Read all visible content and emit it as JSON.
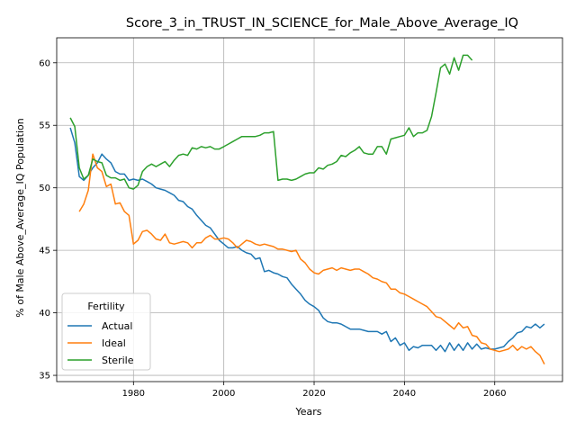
{
  "chart_data": {
    "type": "line",
    "title": "Score_3_in_TRUST_IN_SCIENCE_for_Male_Above_Average_IQ",
    "xlabel": "Years",
    "ylabel": "% of Male Above_Average_IQ Population",
    "xlim": [
      1963,
      2075
    ],
    "ylim": [
      34.5,
      62
    ],
    "xticks": [
      1980,
      2000,
      2020,
      2040,
      2060
    ],
    "yticks": [
      35,
      40,
      45,
      50,
      55,
      60
    ],
    "grid": true,
    "legend": {
      "title": "Fertility",
      "placement": "lower-left"
    },
    "series": [
      {
        "name": "Actual",
        "color": "#1f77b4",
        "points": [
          [
            1966,
            54.8
          ],
          [
            1967,
            53.6
          ],
          [
            1968,
            50.9
          ],
          [
            1969,
            50.6
          ],
          [
            1970,
            51.0
          ],
          [
            1971,
            51.6
          ],
          [
            1972,
            52.0
          ],
          [
            1973,
            52.7
          ],
          [
            1974,
            52.3
          ],
          [
            1975,
            52.0
          ],
          [
            1976,
            51.3
          ],
          [
            1977,
            51.1
          ],
          [
            1978,
            51.1
          ],
          [
            1979,
            50.6
          ],
          [
            1980,
            50.7
          ],
          [
            1981,
            50.6
          ],
          [
            1982,
            50.7
          ],
          [
            1983,
            50.5
          ],
          [
            1984,
            50.3
          ],
          [
            1985,
            50.0
          ],
          [
            1986,
            49.9
          ],
          [
            1987,
            49.8
          ],
          [
            1988,
            49.6
          ],
          [
            1989,
            49.4
          ],
          [
            1990,
            49.0
          ],
          [
            1991,
            48.9
          ],
          [
            1992,
            48.5
          ],
          [
            1993,
            48.3
          ],
          [
            1994,
            47.8
          ],
          [
            1995,
            47.4
          ],
          [
            1996,
            47.0
          ],
          [
            1997,
            46.8
          ],
          [
            1998,
            46.3
          ],
          [
            1999,
            45.8
          ],
          [
            2000,
            45.5
          ],
          [
            2001,
            45.2
          ],
          [
            2002,
            45.2
          ],
          [
            2003,
            45.3
          ],
          [
            2004,
            45.0
          ],
          [
            2005,
            44.8
          ],
          [
            2006,
            44.7
          ],
          [
            2007,
            44.3
          ],
          [
            2008,
            44.4
          ],
          [
            2009,
            43.3
          ],
          [
            2010,
            43.4
          ],
          [
            2011,
            43.2
          ],
          [
            2012,
            43.1
          ],
          [
            2013,
            42.9
          ],
          [
            2014,
            42.8
          ],
          [
            2015,
            42.3
          ],
          [
            2016,
            41.9
          ],
          [
            2017,
            41.5
          ],
          [
            2018,
            41.0
          ],
          [
            2019,
            40.7
          ],
          [
            2020,
            40.5
          ],
          [
            2021,
            40.2
          ],
          [
            2022,
            39.6
          ],
          [
            2023,
            39.3
          ],
          [
            2024,
            39.2
          ],
          [
            2025,
            39.2
          ],
          [
            2026,
            39.1
          ],
          [
            2027,
            38.9
          ],
          [
            2028,
            38.7
          ],
          [
            2029,
            38.7
          ],
          [
            2030,
            38.7
          ],
          [
            2031,
            38.6
          ],
          [
            2032,
            38.5
          ],
          [
            2033,
            38.5
          ],
          [
            2034,
            38.5
          ],
          [
            2035,
            38.3
          ],
          [
            2036,
            38.5
          ],
          [
            2037,
            37.7
          ],
          [
            2038,
            38.0
          ],
          [
            2039,
            37.4
          ],
          [
            2040,
            37.6
          ],
          [
            2041,
            37.0
          ],
          [
            2042,
            37.3
          ],
          [
            2043,
            37.2
          ],
          [
            2044,
            37.4
          ],
          [
            2045,
            37.4
          ],
          [
            2046,
            37.4
          ],
          [
            2047,
            37.0
          ],
          [
            2048,
            37.4
          ],
          [
            2049,
            36.9
          ],
          [
            2050,
            37.6
          ],
          [
            2051,
            37.0
          ],
          [
            2052,
            37.5
          ],
          [
            2053,
            37.0
          ],
          [
            2054,
            37.6
          ],
          [
            2055,
            37.1
          ],
          [
            2056,
            37.5
          ],
          [
            2057,
            37.1
          ],
          [
            2058,
            37.2
          ],
          [
            2059,
            37.1
          ],
          [
            2060,
            37.1
          ],
          [
            2061,
            37.2
          ],
          [
            2062,
            37.3
          ],
          [
            2063,
            37.7
          ],
          [
            2064,
            38.0
          ],
          [
            2065,
            38.4
          ],
          [
            2066,
            38.5
          ],
          [
            2067,
            38.9
          ],
          [
            2068,
            38.8
          ],
          [
            2069,
            39.1
          ],
          [
            2070,
            38.8
          ],
          [
            2071,
            39.1
          ]
        ]
      },
      {
        "name": "Ideal",
        "color": "#ff7f0e",
        "points": [
          [
            1968,
            48.1
          ],
          [
            1969,
            48.7
          ],
          [
            1970,
            49.8
          ],
          [
            1971,
            52.7
          ],
          [
            1972,
            51.6
          ],
          [
            1973,
            51.3
          ],
          [
            1974,
            50.1
          ],
          [
            1975,
            50.3
          ],
          [
            1976,
            48.7
          ],
          [
            1977,
            48.8
          ],
          [
            1978,
            48.1
          ],
          [
            1979,
            47.8
          ],
          [
            1980,
            45.5
          ],
          [
            1981,
            45.8
          ],
          [
            1982,
            46.5
          ],
          [
            1983,
            46.6
          ],
          [
            1984,
            46.3
          ],
          [
            1985,
            45.9
          ],
          [
            1986,
            45.8
          ],
          [
            1987,
            46.3
          ],
          [
            1988,
            45.6
          ],
          [
            1989,
            45.5
          ],
          [
            1990,
            45.6
          ],
          [
            1991,
            45.7
          ],
          [
            1992,
            45.6
          ],
          [
            1993,
            45.2
          ],
          [
            1994,
            45.6
          ],
          [
            1995,
            45.6
          ],
          [
            1996,
            46.0
          ],
          [
            1997,
            46.2
          ],
          [
            1998,
            45.9
          ],
          [
            1999,
            45.9
          ],
          [
            2000,
            46.0
          ],
          [
            2001,
            45.9
          ],
          [
            2002,
            45.6
          ],
          [
            2003,
            45.2
          ],
          [
            2004,
            45.5
          ],
          [
            2005,
            45.8
          ],
          [
            2006,
            45.7
          ],
          [
            2007,
            45.5
          ],
          [
            2008,
            45.4
          ],
          [
            2009,
            45.5
          ],
          [
            2010,
            45.4
          ],
          [
            2011,
            45.3
          ],
          [
            2012,
            45.1
          ],
          [
            2013,
            45.1
          ],
          [
            2014,
            45.0
          ],
          [
            2015,
            44.9
          ],
          [
            2016,
            45.0
          ],
          [
            2017,
            44.3
          ],
          [
            2018,
            44.0
          ],
          [
            2019,
            43.5
          ],
          [
            2020,
            43.2
          ],
          [
            2021,
            43.1
          ],
          [
            2022,
            43.4
          ],
          [
            2023,
            43.5
          ],
          [
            2024,
            43.6
          ],
          [
            2025,
            43.4
          ],
          [
            2026,
            43.6
          ],
          [
            2027,
            43.5
          ],
          [
            2028,
            43.4
          ],
          [
            2029,
            43.5
          ],
          [
            2030,
            43.5
          ],
          [
            2031,
            43.3
          ],
          [
            2032,
            43.1
          ],
          [
            2033,
            42.8
          ],
          [
            2034,
            42.7
          ],
          [
            2035,
            42.5
          ],
          [
            2036,
            42.4
          ],
          [
            2037,
            41.9
          ],
          [
            2038,
            41.9
          ],
          [
            2039,
            41.6
          ],
          [
            2040,
            41.5
          ],
          [
            2041,
            41.3
          ],
          [
            2042,
            41.1
          ],
          [
            2043,
            40.9
          ],
          [
            2044,
            40.7
          ],
          [
            2045,
            40.5
          ],
          [
            2046,
            40.1
          ],
          [
            2047,
            39.7
          ],
          [
            2048,
            39.6
          ],
          [
            2049,
            39.3
          ],
          [
            2050,
            39.0
          ],
          [
            2051,
            38.7
          ],
          [
            2052,
            39.2
          ],
          [
            2053,
            38.8
          ],
          [
            2054,
            38.9
          ],
          [
            2055,
            38.2
          ],
          [
            2056,
            38.1
          ],
          [
            2057,
            37.6
          ],
          [
            2058,
            37.5
          ],
          [
            2059,
            37.1
          ],
          [
            2060,
            37.0
          ],
          [
            2061,
            36.9
          ],
          [
            2062,
            37.0
          ],
          [
            2063,
            37.1
          ],
          [
            2064,
            37.4
          ],
          [
            2065,
            37.0
          ],
          [
            2066,
            37.3
          ],
          [
            2067,
            37.1
          ],
          [
            2068,
            37.3
          ],
          [
            2069,
            36.9
          ],
          [
            2070,
            36.6
          ],
          [
            2071,
            35.9
          ]
        ]
      },
      {
        "name": "Sterile",
        "color": "#2ca02c",
        "points": [
          [
            1966,
            55.6
          ],
          [
            1967,
            54.9
          ],
          [
            1968,
            51.6
          ],
          [
            1969,
            50.7
          ],
          [
            1970,
            51.0
          ],
          [
            1971,
            52.3
          ],
          [
            1972,
            52.1
          ],
          [
            1973,
            52.0
          ],
          [
            1974,
            51.0
          ],
          [
            1975,
            50.8
          ],
          [
            1976,
            50.8
          ],
          [
            1977,
            50.6
          ],
          [
            1978,
            50.7
          ],
          [
            1979,
            50.0
          ],
          [
            1980,
            49.9
          ],
          [
            1981,
            50.2
          ],
          [
            1982,
            51.3
          ],
          [
            1983,
            51.7
          ],
          [
            1984,
            51.9
          ],
          [
            1985,
            51.7
          ],
          [
            1986,
            51.9
          ],
          [
            1987,
            52.1
          ],
          [
            1988,
            51.7
          ],
          [
            1989,
            52.2
          ],
          [
            1990,
            52.6
          ],
          [
            1991,
            52.7
          ],
          [
            1992,
            52.6
          ],
          [
            1993,
            53.2
          ],
          [
            1994,
            53.1
          ],
          [
            1995,
            53.3
          ],
          [
            1996,
            53.2
          ],
          [
            1997,
            53.3
          ],
          [
            1998,
            53.1
          ],
          [
            1999,
            53.1
          ],
          [
            2000,
            53.3
          ],
          [
            2001,
            53.5
          ],
          [
            2002,
            53.7
          ],
          [
            2003,
            53.9
          ],
          [
            2004,
            54.1
          ],
          [
            2005,
            54.1
          ],
          [
            2006,
            54.1
          ],
          [
            2007,
            54.1
          ],
          [
            2008,
            54.2
          ],
          [
            2009,
            54.4
          ],
          [
            2010,
            54.4
          ],
          [
            2011,
            54.5
          ],
          [
            2012,
            50.6
          ],
          [
            2013,
            50.7
          ],
          [
            2014,
            50.7
          ],
          [
            2015,
            50.6
          ],
          [
            2016,
            50.7
          ],
          [
            2017,
            50.9
          ],
          [
            2018,
            51.1
          ],
          [
            2019,
            51.2
          ],
          [
            2020,
            51.2
          ],
          [
            2021,
            51.6
          ],
          [
            2022,
            51.5
          ],
          [
            2023,
            51.8
          ],
          [
            2024,
            51.9
          ],
          [
            2025,
            52.1
          ],
          [
            2026,
            52.6
          ],
          [
            2027,
            52.5
          ],
          [
            2028,
            52.8
          ],
          [
            2029,
            53.0
          ],
          [
            2030,
            53.3
          ],
          [
            2031,
            52.8
          ],
          [
            2032,
            52.7
          ],
          [
            2033,
            52.7
          ],
          [
            2034,
            53.3
          ],
          [
            2035,
            53.3
          ],
          [
            2036,
            52.7
          ],
          [
            2037,
            53.9
          ],
          [
            2038,
            54.0
          ],
          [
            2039,
            54.1
          ],
          [
            2040,
            54.2
          ],
          [
            2041,
            54.8
          ],
          [
            2042,
            54.1
          ],
          [
            2043,
            54.4
          ],
          [
            2044,
            54.4
          ],
          [
            2045,
            54.6
          ],
          [
            2046,
            55.7
          ],
          [
            2047,
            57.6
          ],
          [
            2048,
            59.6
          ],
          [
            2049,
            59.9
          ],
          [
            2050,
            59.1
          ],
          [
            2051,
            60.4
          ],
          [
            2052,
            59.4
          ],
          [
            2053,
            60.6
          ],
          [
            2054,
            60.6
          ],
          [
            2055,
            60.2
          ]
        ]
      }
    ]
  }
}
